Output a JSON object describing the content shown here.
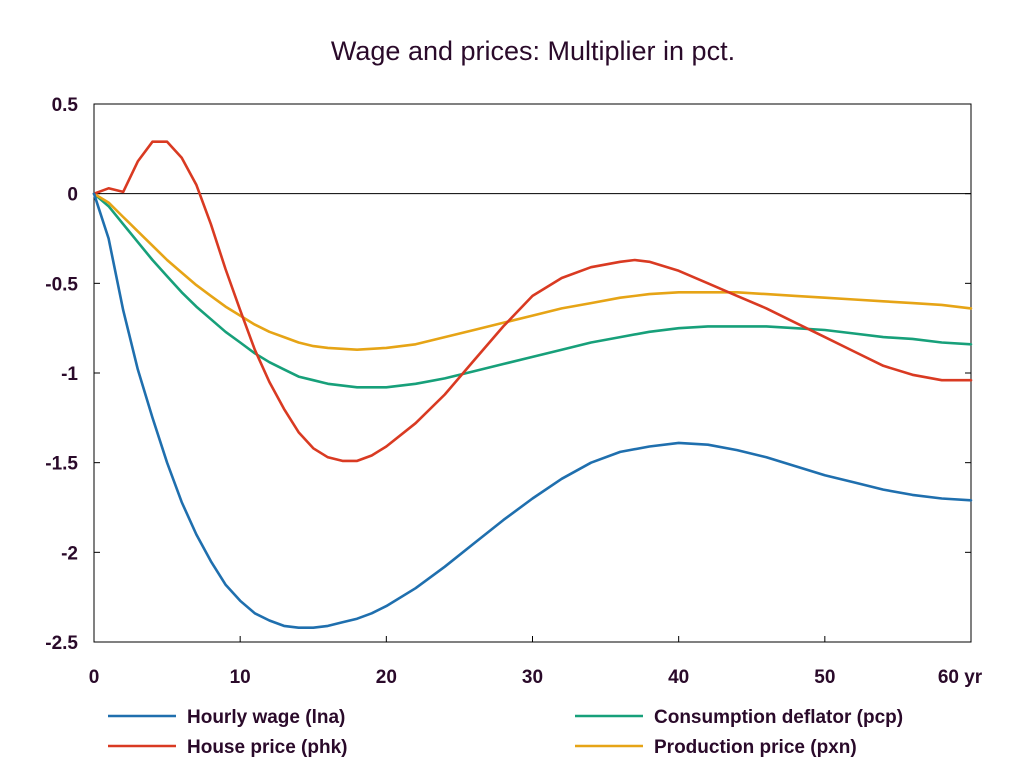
{
  "chart_data": {
    "type": "line",
    "title": "Wage and prices: Multiplier in pct.",
    "xlabel": "",
    "ylabel": "",
    "xlim": [
      0,
      60
    ],
    "ylim": [
      -2.5,
      0.5
    ],
    "x_ticks": [
      0,
      10,
      20,
      30,
      40,
      50,
      60
    ],
    "x_tick_labels": [
      "0",
      "10",
      "20",
      "30",
      "40",
      "50",
      "60 yr"
    ],
    "y_ticks": [
      0.5,
      0,
      -0.5,
      -1,
      -1.5,
      -2,
      -2.5
    ],
    "y_tick_labels": [
      "0.5",
      "0",
      "-0.5",
      "-1",
      "-1.5",
      "-2",
      "-2.5"
    ],
    "grid": false,
    "zero_line": true,
    "legend_position": "bottom",
    "series": [
      {
        "name": "Hourly wage (lna)",
        "color": "#1f6fae",
        "x": [
          0,
          1,
          2,
          3,
          4,
          5,
          6,
          7,
          8,
          9,
          10,
          11,
          12,
          13,
          14,
          15,
          16,
          17,
          18,
          19,
          20,
          22,
          24,
          26,
          28,
          30,
          32,
          34,
          36,
          38,
          40,
          42,
          44,
          46,
          48,
          50,
          52,
          54,
          56,
          58,
          60
        ],
        "y": [
          0,
          -0.25,
          -0.65,
          -0.98,
          -1.25,
          -1.5,
          -1.72,
          -1.9,
          -2.05,
          -2.18,
          -2.27,
          -2.34,
          -2.38,
          -2.41,
          -2.42,
          -2.42,
          -2.41,
          -2.39,
          -2.37,
          -2.34,
          -2.3,
          -2.2,
          -2.08,
          -1.95,
          -1.82,
          -1.7,
          -1.59,
          -1.5,
          -1.44,
          -1.41,
          -1.39,
          -1.4,
          -1.43,
          -1.47,
          -1.52,
          -1.57,
          -1.61,
          -1.65,
          -1.68,
          -1.7,
          -1.71
        ]
      },
      {
        "name": "Consumption deflator (pcp)",
        "color": "#17a07a",
        "x": [
          0,
          1,
          2,
          3,
          4,
          5,
          6,
          7,
          8,
          9,
          10,
          11,
          12,
          13,
          14,
          15,
          16,
          18,
          20,
          22,
          24,
          26,
          28,
          30,
          32,
          34,
          36,
          38,
          40,
          42,
          44,
          46,
          48,
          50,
          52,
          54,
          56,
          58,
          60
        ],
        "y": [
          0,
          -0.07,
          -0.17,
          -0.27,
          -0.37,
          -0.46,
          -0.55,
          -0.63,
          -0.7,
          -0.77,
          -0.83,
          -0.89,
          -0.94,
          -0.98,
          -1.02,
          -1.04,
          -1.06,
          -1.08,
          -1.08,
          -1.06,
          -1.03,
          -0.99,
          -0.95,
          -0.91,
          -0.87,
          -0.83,
          -0.8,
          -0.77,
          -0.75,
          -0.74,
          -0.74,
          -0.74,
          -0.75,
          -0.76,
          -0.78,
          -0.8,
          -0.81,
          -0.83,
          -0.84
        ]
      },
      {
        "name": "House price (phk)",
        "color": "#d93a22",
        "x": [
          0,
          1,
          2,
          3,
          4,
          5,
          6,
          7,
          8,
          9,
          10,
          11,
          12,
          13,
          14,
          15,
          16,
          17,
          18,
          19,
          20,
          22,
          24,
          26,
          28,
          30,
          32,
          34,
          36,
          37,
          38,
          40,
          42,
          44,
          46,
          48,
          50,
          52,
          54,
          56,
          58,
          60
        ],
        "y": [
          0,
          0.03,
          0.01,
          0.18,
          0.29,
          0.29,
          0.2,
          0.05,
          -0.17,
          -0.42,
          -0.65,
          -0.87,
          -1.05,
          -1.2,
          -1.33,
          -1.42,
          -1.47,
          -1.49,
          -1.49,
          -1.46,
          -1.41,
          -1.28,
          -1.12,
          -0.93,
          -0.74,
          -0.57,
          -0.47,
          -0.41,
          -0.38,
          -0.37,
          -0.38,
          -0.43,
          -0.5,
          -0.57,
          -0.64,
          -0.72,
          -0.8,
          -0.88,
          -0.96,
          -1.01,
          -1.04,
          -1.04
        ]
      },
      {
        "name": "Production price (pxn)",
        "color": "#e6a416",
        "x": [
          0,
          1,
          2,
          3,
          4,
          5,
          6,
          7,
          8,
          9,
          10,
          11,
          12,
          13,
          14,
          15,
          16,
          18,
          20,
          22,
          24,
          26,
          28,
          30,
          32,
          34,
          36,
          38,
          40,
          42,
          44,
          46,
          48,
          50,
          52,
          54,
          56,
          58,
          60
        ],
        "y": [
          0,
          -0.05,
          -0.13,
          -0.21,
          -0.29,
          -0.37,
          -0.44,
          -0.51,
          -0.57,
          -0.63,
          -0.68,
          -0.73,
          -0.77,
          -0.8,
          -0.83,
          -0.85,
          -0.86,
          -0.87,
          -0.86,
          -0.84,
          -0.8,
          -0.76,
          -0.72,
          -0.68,
          -0.64,
          -0.61,
          -0.58,
          -0.56,
          -0.55,
          -0.55,
          -0.55,
          -0.56,
          -0.57,
          -0.58,
          -0.59,
          -0.6,
          -0.61,
          -0.62,
          -0.64
        ]
      }
    ]
  }
}
